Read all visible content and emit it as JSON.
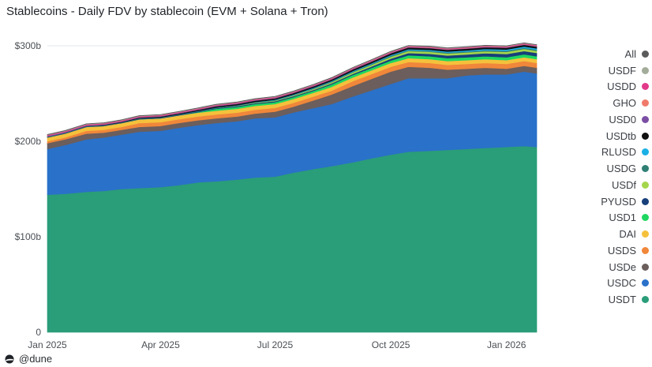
{
  "header": {
    "title": "Stablecoins - Daily FDV by stablecoin (EVM + Solana + Tron)"
  },
  "footer": {
    "brand": "@dune"
  },
  "chart_data": {
    "type": "area",
    "stacked": true,
    "x": [
      "2025-01-01",
      "2025-01-15",
      "2025-02-01",
      "2025-02-15",
      "2025-03-01",
      "2025-03-15",
      "2025-04-01",
      "2025-04-15",
      "2025-05-01",
      "2025-05-15",
      "2025-06-01",
      "2025-06-15",
      "2025-07-01",
      "2025-07-15",
      "2025-08-01",
      "2025-08-15",
      "2025-09-01",
      "2025-09-15",
      "2025-10-01",
      "2025-10-15",
      "2025-11-01",
      "2025-11-15",
      "2025-12-01",
      "2025-12-15",
      "2026-01-01",
      "2026-01-15",
      "2026-01-25"
    ],
    "xticks": [
      {
        "date": "2025-01-01",
        "label": "Jan 2025"
      },
      {
        "date": "2025-04-01",
        "label": "Apr 2025"
      },
      {
        "date": "2025-07-01",
        "label": "Jul 2025"
      },
      {
        "date": "2025-10-01",
        "label": "Oct 2025"
      },
      {
        "date": "2026-01-01",
        "label": "Jan 2026"
      }
    ],
    "yticks": [
      {
        "value": 0,
        "label": "0"
      },
      {
        "value": 100,
        "label": "$100b"
      },
      {
        "value": 200,
        "label": "$200b"
      },
      {
        "value": 300,
        "label": "$300b"
      }
    ],
    "xlim": [
      "2025-01-01",
      "2026-01-25"
    ],
    "ylim": [
      0,
      300
    ],
    "y_unit": "billions USD",
    "legend_position": "right",
    "series": [
      {
        "name": "USDT",
        "color": "#2a9d79",
        "values": [
          144,
          145,
          147,
          148,
          150,
          151,
          152,
          154,
          157,
          158,
          160,
          162,
          163,
          167,
          171,
          174,
          178,
          182,
          186,
          189,
          190,
          191,
          192,
          193,
          194,
          195,
          194
        ]
      },
      {
        "name": "USDC",
        "color": "#2a71c9",
        "values": [
          48,
          51,
          55,
          56,
          57,
          59,
          59,
          60,
          60,
          61,
          61,
          62,
          62,
          63,
          64,
          65,
          69,
          71,
          74,
          77,
          76,
          75,
          77,
          77,
          76,
          78,
          77
        ]
      },
      {
        "name": "USDe",
        "color": "#6b5e5c",
        "values": [
          6,
          6,
          6,
          5,
          5,
          5,
          5,
          5,
          5,
          5,
          5,
          5,
          6,
          6,
          8,
          10,
          11,
          12,
          13,
          12,
          11,
          9,
          7,
          7,
          6,
          6,
          6
        ]
      },
      {
        "name": "USDS",
        "color": "#f0873a",
        "values": [
          2,
          2,
          3,
          3,
          3,
          4,
          4,
          4,
          4,
          4,
          4,
          4,
          4,
          4,
          4,
          4,
          5,
          5,
          5,
          5,
          5,
          5,
          5,
          5,
          5,
          5,
          5
        ]
      },
      {
        "name": "DAI",
        "color": "#f5c13c",
        "values": [
          4,
          4,
          4,
          4,
          4,
          4,
          4,
          4,
          4,
          4,
          4,
          4,
          4,
          4,
          4,
          4,
          4,
          4,
          4,
          4,
          4,
          4,
          4,
          4,
          4,
          4,
          4
        ]
      },
      {
        "name": "USD1",
        "color": "#1ed760",
        "values": [
          0,
          0,
          0,
          0,
          0,
          0,
          0,
          0,
          0.5,
          2,
          2,
          2,
          2,
          2,
          2,
          2.5,
          2.5,
          2.5,
          2.5,
          3,
          3,
          3,
          3,
          3,
          3,
          3,
          3
        ]
      },
      {
        "name": "PYUSD",
        "color": "#173f7a",
        "values": [
          0.5,
          0.5,
          0.5,
          0.5,
          0.5,
          0.6,
          0.6,
          0.7,
          0.8,
          0.8,
          0.9,
          0.9,
          1,
          1,
          1,
          1.2,
          1.2,
          1.4,
          2,
          2.4,
          2.6,
          2.8,
          3,
          3.2,
          3.4,
          3.5,
          3.5
        ]
      },
      {
        "name": "USDf",
        "color": "#a4d64c",
        "values": [
          0,
          0,
          0,
          0,
          0,
          0,
          0,
          0,
          0,
          0.1,
          0.3,
          0.5,
          0.6,
          0.8,
          1,
          1.2,
          1.5,
          1.8,
          2,
          2.1,
          2.1,
          2.1,
          2.1,
          2.1,
          2.2,
          2.2,
          2.2
        ]
      },
      {
        "name": "USDG",
        "color": "#2f7f74",
        "values": [
          0.1,
          0.1,
          0.1,
          0.1,
          0.1,
          0.1,
          0.1,
          0.1,
          0.1,
          0.1,
          0.2,
          0.3,
          0.4,
          0.5,
          0.6,
          0.7,
          0.8,
          0.9,
          1,
          1,
          1,
          1,
          1,
          1.1,
          1.2,
          1.2,
          1.2
        ]
      },
      {
        "name": "RLUSD",
        "color": "#1ab0e6",
        "values": [
          0.1,
          0.1,
          0.1,
          0.1,
          0.1,
          0.2,
          0.2,
          0.2,
          0.3,
          0.3,
          0.3,
          0.4,
          0.5,
          0.5,
          0.6,
          0.6,
          0.7,
          0.7,
          0.8,
          0.9,
          1,
          1,
          1.1,
          1.2,
          1.3,
          1.3,
          1.3
        ]
      },
      {
        "name": "USDtb",
        "color": "#111111",
        "values": [
          0.1,
          0.2,
          0.3,
          0.5,
          0.6,
          0.8,
          1,
          1,
          1.2,
          1.3,
          1.4,
          1.4,
          1.4,
          1.4,
          1.5,
          1.5,
          1.6,
          1.7,
          1.8,
          1.8,
          1.8,
          1.8,
          1.8,
          1.8,
          1.8,
          1.8,
          1.8
        ]
      },
      {
        "name": "USD0",
        "color": "#7b4ea3",
        "values": [
          0.8,
          0.8,
          0.8,
          0.7,
          0.7,
          0.6,
          0.6,
          0.6,
          0.6,
          0.6,
          0.6,
          0.6,
          0.6,
          0.6,
          0.6,
          0.5,
          0.5,
          0.5,
          0.5,
          0.5,
          0.5,
          0.5,
          0.5,
          0.5,
          0.5,
          0.5,
          0.5
        ]
      },
      {
        "name": "GHO",
        "color": "#f07a6a",
        "values": [
          0.2,
          0.2,
          0.2,
          0.2,
          0.2,
          0.2,
          0.2,
          0.2,
          0.2,
          0.2,
          0.2,
          0.2,
          0.2,
          0.2,
          0.2,
          0.2,
          0.3,
          0.3,
          0.3,
          0.3,
          0.3,
          0.3,
          0.3,
          0.3,
          0.3,
          0.3,
          0.3
        ]
      },
      {
        "name": "USDD",
        "color": "#e23a8a",
        "values": [
          0.7,
          0.7,
          0.7,
          0.7,
          0.7,
          0.7,
          0.7,
          0.7,
          0.7,
          0.7,
          0.7,
          0.7,
          0.7,
          0.7,
          0.7,
          0.7,
          0.7,
          0.7,
          0.7,
          0.7,
          0.7,
          0.7,
          0.7,
          0.7,
          0.7,
          0.7,
          0.7
        ]
      },
      {
        "name": "USDF",
        "color": "#a3ac99",
        "values": [
          0.4,
          0.4,
          0.4,
          0.4,
          0.4,
          0.4,
          0.4,
          0.4,
          0.4,
          0.4,
          0.4,
          0.4,
          0.4,
          0.4,
          0.4,
          0.4,
          0.4,
          0.4,
          0.4,
          0.4,
          0.4,
          0.4,
          0.4,
          0.4,
          0.4,
          0.4,
          0.4
        ]
      },
      {
        "name": "All",
        "color": "#5b5b5b",
        "values": [
          0.3,
          0.3,
          0.3,
          0.3,
          0.3,
          0.3,
          0.3,
          0.3,
          0.3,
          0.3,
          0.3,
          0.3,
          0.3,
          0.3,
          0.3,
          0.3,
          0.3,
          0.3,
          0.3,
          0.3,
          0.3,
          0.3,
          0.3,
          0.3,
          0.3,
          0.3,
          0.3
        ]
      }
    ]
  }
}
